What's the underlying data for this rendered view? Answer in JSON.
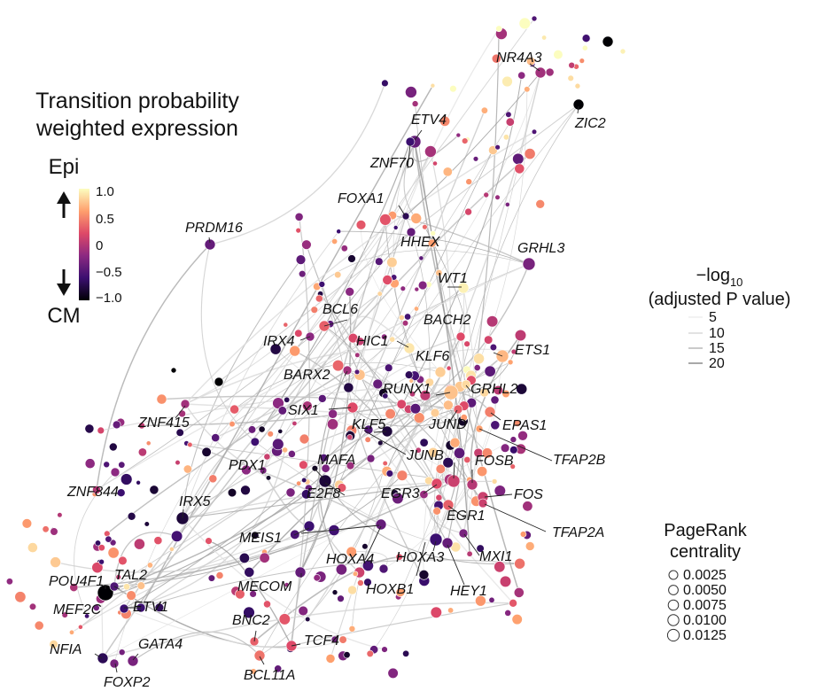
{
  "colorbar": {
    "title_lines": [
      "Transition probability",
      "weighted expression"
    ],
    "top_label": "Epi",
    "bottom_label": "CM",
    "ticks": [
      "1.0",
      "0.5",
      "0",
      "−0.5",
      "−1.0"
    ],
    "tick_values": [
      1.0,
      0.5,
      0,
      -0.5,
      -1.0
    ],
    "colormap": [
      "#000004",
      "#3b0f70",
      "#8c2981",
      "#de4968",
      "#fe9f6d",
      "#fcfdbf"
    ]
  },
  "pvalue_legend": {
    "title_prefix": "−log",
    "title_sub": "10",
    "title_line2": "(adjusted P value)",
    "entries": [
      "5",
      "10",
      "15",
      "20"
    ],
    "values": [
      5,
      10,
      15,
      20
    ]
  },
  "pagerank_legend": {
    "title_lines": [
      "PageRank",
      "centrality"
    ],
    "entries": [
      "0.0025",
      "0.0050",
      "0.0075",
      "0.0100",
      "0.0125"
    ],
    "values": [
      0.0025,
      0.005,
      0.0075,
      0.01,
      0.0125
    ]
  },
  "genes": [
    "NR4A3",
    "ZIC2",
    "ETV4",
    "ZNF70",
    "FOXA1",
    "PRDM16",
    "HHEX",
    "GRHL3",
    "WT1",
    "BCL6",
    "BACH2",
    "IRX4",
    "HIC1",
    "ETS1",
    "KLF6",
    "BARX2",
    "RUNX1",
    "GRHL2",
    "SIX1",
    "EPAS1",
    "ZNF415",
    "KLF5",
    "JUND",
    "TFAP2B",
    "JUNB",
    "FOSB",
    "MAFA",
    "PDX1",
    "ZNF844",
    "E2F8",
    "EGR3",
    "FOS",
    "IRX5",
    "EGR1",
    "TFAP2A",
    "MEIS1",
    "MXI1",
    "HOXA4",
    "HOXA3",
    "POU4F1",
    "TAL2",
    "MECOM",
    "HOXB1",
    "HEY1",
    "MEF2C",
    "ETV1",
    "BNC2",
    "TCF4",
    "NFIA",
    "GATA4",
    "FOXP2",
    "BCL11A"
  ]
}
